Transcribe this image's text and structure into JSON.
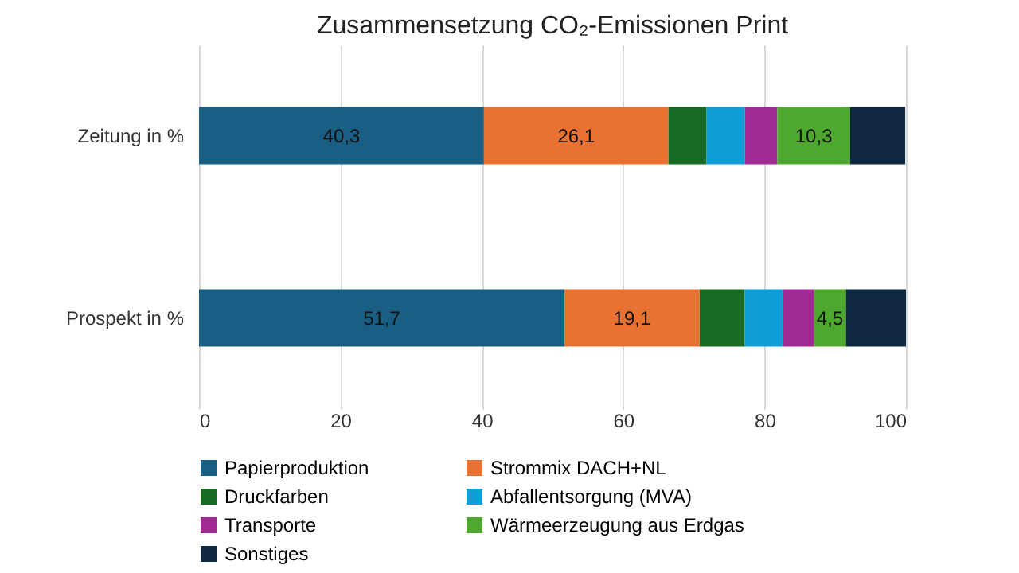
{
  "chart_data": {
    "type": "bar",
    "orientation": "horizontal",
    "stacked": true,
    "title": "Zusammensetzung CO₂-Emissionen Print",
    "categories": [
      "Zeitung in %",
      "Prospekt in %"
    ],
    "series": [
      {
        "name": "Papierproduktion",
        "color": "#1a5e84",
        "values": [
          40.3,
          51.7
        ],
        "value_labels": [
          "40,3",
          "51,7"
        ]
      },
      {
        "name": "Strommix DACH+NL",
        "color": "#e97132",
        "values": [
          26.1,
          19.1
        ],
        "value_labels": [
          "26,1",
          "19,1"
        ]
      },
      {
        "name": "Druckfarben",
        "color": "#196b24",
        "values": [
          5.4,
          6.4
        ],
        "value_labels": [
          null,
          null
        ]
      },
      {
        "name": "Abfallentsorgung (MVA)",
        "color": "#0f9ed5",
        "values": [
          5.4,
          5.4
        ],
        "value_labels": [
          null,
          null
        ]
      },
      {
        "name": "Transporte",
        "color": "#a02b93",
        "values": [
          4.6,
          4.4
        ],
        "value_labels": [
          null,
          null
        ]
      },
      {
        "name": "Wärmeerzeugung aus Erdgas",
        "color": "#4ea72e",
        "values": [
          10.3,
          4.5
        ],
        "value_labels": [
          "10,3",
          "4,5"
        ]
      },
      {
        "name": "Sonstiges",
        "color": "#0e2841",
        "values": [
          7.8,
          8.5
        ],
        "value_labels": [
          null,
          null
        ]
      }
    ],
    "xlim": [
      0,
      100
    ],
    "xticks": [
      0,
      20,
      40,
      60,
      80,
      100
    ],
    "grid": "x",
    "legend": "bottom"
  }
}
